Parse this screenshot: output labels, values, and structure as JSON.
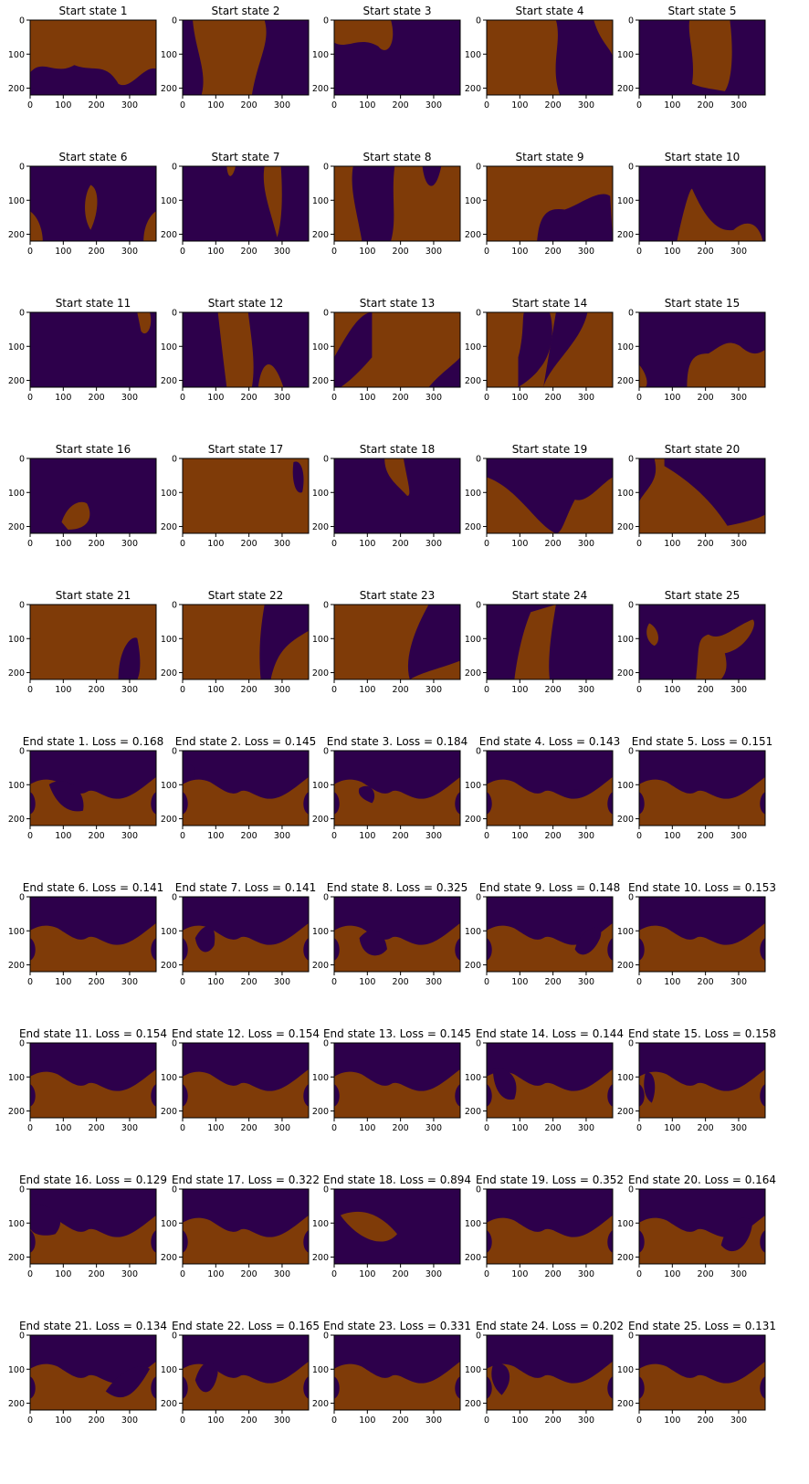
{
  "colors": {
    "background": "#ffffff",
    "orange": "#7f3b08",
    "orange_mid": "#e08214",
    "pale": "#f7f7f7",
    "lavender": "#b2abd2",
    "purple": "#2d004b",
    "axis": "#000000"
  },
  "chart_data": {
    "type": "heatmap",
    "layout": {
      "rows": 10,
      "cols": 5
    },
    "colormap": "PuOr",
    "x_ticks": [
      "0",
      "100",
      "200",
      "300"
    ],
    "y_ticks": [
      "0",
      "100",
      "200"
    ],
    "xlim": [
      0,
      380
    ],
    "ylim": [
      220,
      0
    ],
    "panels": [
      {
        "title": "Start state 1"
      },
      {
        "title": "Start state 2"
      },
      {
        "title": "Start state 3"
      },
      {
        "title": "Start state 4"
      },
      {
        "title": "Start state 5"
      },
      {
        "title": "Start state 6"
      },
      {
        "title": "Start state 7"
      },
      {
        "title": "Start state 8"
      },
      {
        "title": "Start state 9"
      },
      {
        "title": "Start state 10"
      },
      {
        "title": "Start state 11"
      },
      {
        "title": "Start state 12"
      },
      {
        "title": "Start state 13"
      },
      {
        "title": "Start state 14"
      },
      {
        "title": "Start state 15"
      },
      {
        "title": "Start state 16"
      },
      {
        "title": "Start state 17"
      },
      {
        "title": "Start state 18"
      },
      {
        "title": "Start state 19"
      },
      {
        "title": "Start state 20"
      },
      {
        "title": "Start state 21"
      },
      {
        "title": "Start state 22"
      },
      {
        "title": "Start state 23"
      },
      {
        "title": "Start state 24"
      },
      {
        "title": "Start state 25"
      },
      {
        "title": "End state 1. Loss = 0.168",
        "loss": 0.168
      },
      {
        "title": "End state 2. Loss = 0.145",
        "loss": 0.145
      },
      {
        "title": "End state 3. Loss = 0.184",
        "loss": 0.184
      },
      {
        "title": "End state 4. Loss = 0.143",
        "loss": 0.143
      },
      {
        "title": "End state 5. Loss = 0.151",
        "loss": 0.151
      },
      {
        "title": "End state 6. Loss = 0.141",
        "loss": 0.141
      },
      {
        "title": "End state 7. Loss = 0.141",
        "loss": 0.141
      },
      {
        "title": "End state 8. Loss = 0.325",
        "loss": 0.325
      },
      {
        "title": "End state 9. Loss = 0.148",
        "loss": 0.148
      },
      {
        "title": "End state 10. Loss = 0.153",
        "loss": 0.153
      },
      {
        "title": "End state 11. Loss = 0.154",
        "loss": 0.154
      },
      {
        "title": "End state 12. Loss = 0.154",
        "loss": 0.154
      },
      {
        "title": "End state 13. Loss = 0.145",
        "loss": 0.145
      },
      {
        "title": "End state 14. Loss = 0.144",
        "loss": 0.144
      },
      {
        "title": "End state 15. Loss = 0.158",
        "loss": 0.158
      },
      {
        "title": "End state 16. Loss = 0.129",
        "loss": 0.129
      },
      {
        "title": "End state 17. Loss = 0.322",
        "loss": 0.322
      },
      {
        "title": "End state 18. Loss = 0.894",
        "loss": 0.894
      },
      {
        "title": "End state 19. Loss = 0.352",
        "loss": 0.352
      },
      {
        "title": "End state 20. Loss = 0.164",
        "loss": 0.164
      },
      {
        "title": "End state 21. Loss = 0.134",
        "loss": 0.134
      },
      {
        "title": "End state 22. Loss = 0.165",
        "loss": 0.165
      },
      {
        "title": "End state 23. Loss = 0.331",
        "loss": 0.331
      },
      {
        "title": "End state 24. Loss = 0.202",
        "loss": 0.202
      },
      {
        "title": "End state 25. Loss = 0.131",
        "loss": 0.131
      }
    ]
  }
}
